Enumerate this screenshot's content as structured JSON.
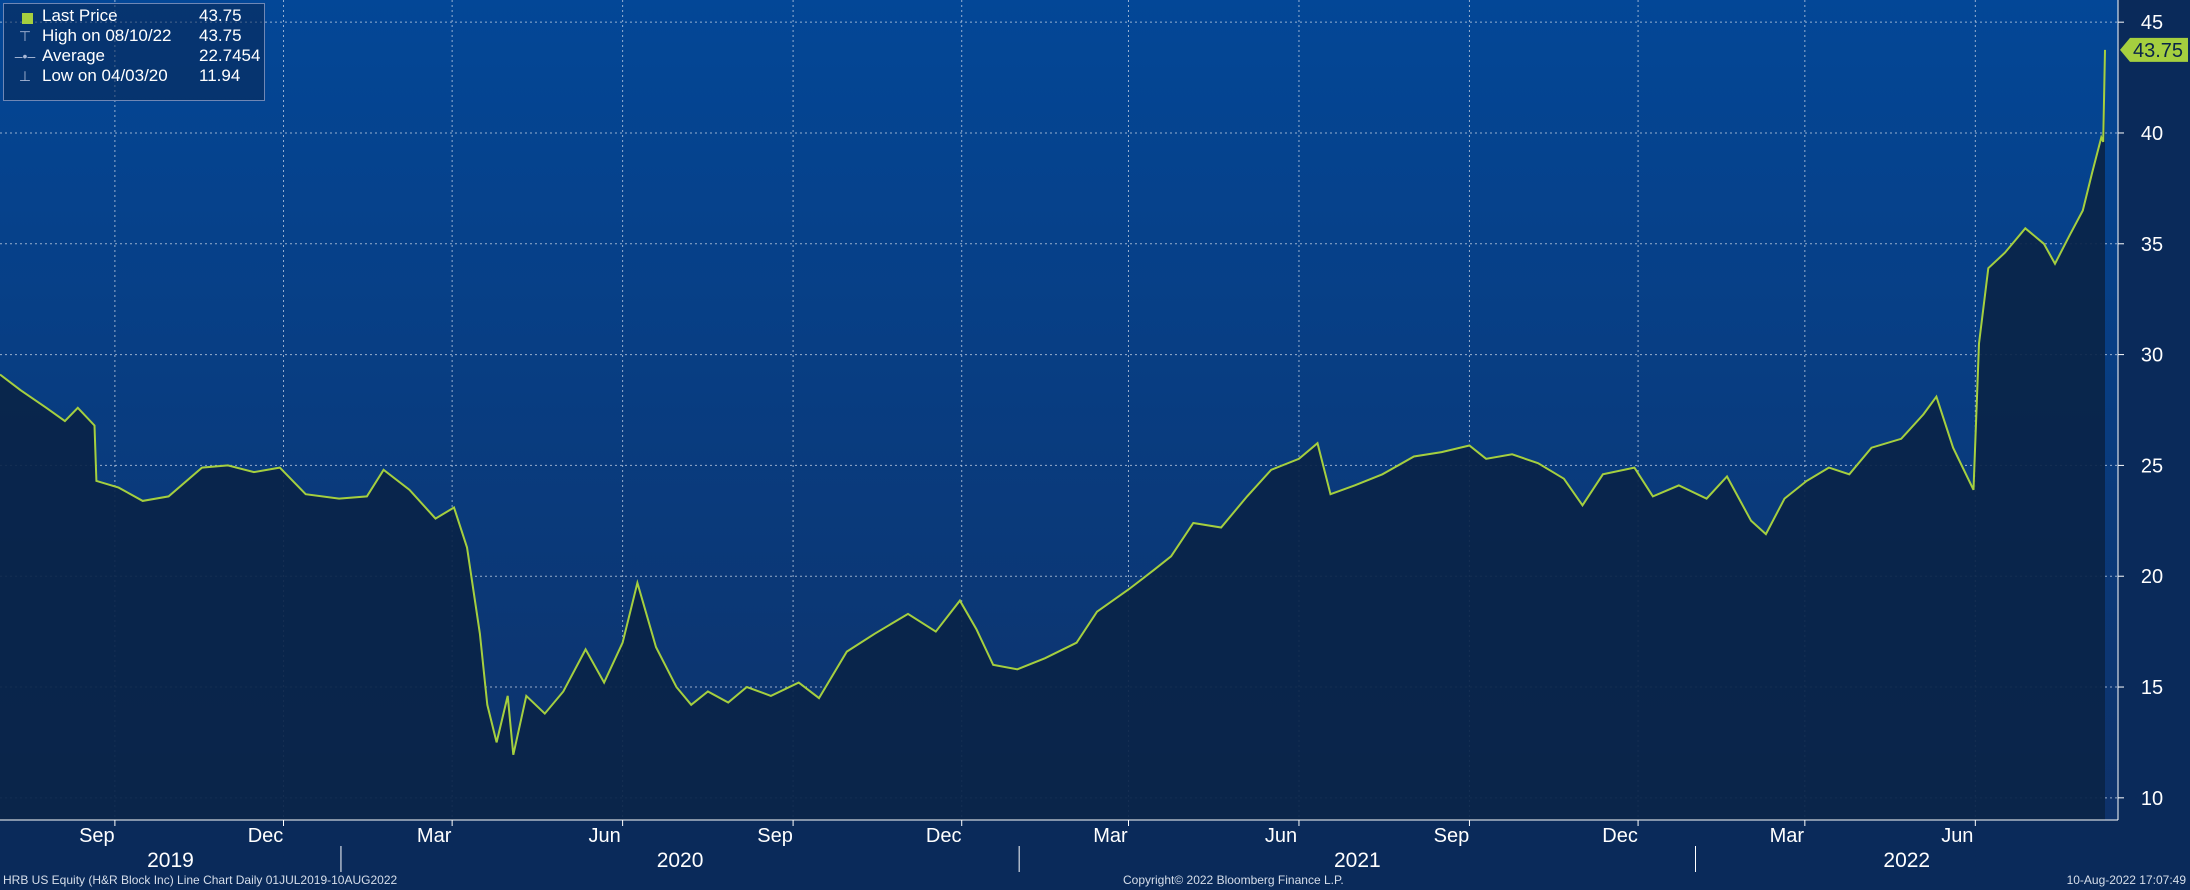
{
  "legend": {
    "items": [
      {
        "label": "Last Price",
        "value": "43.75",
        "icon": "square-swatch-icon"
      },
      {
        "label": "High on 08/10/22",
        "value": "43.75",
        "icon": "high-marker-icon"
      },
      {
        "label": "Average",
        "value": "22.7454",
        "icon": "average-marker-icon"
      },
      {
        "label": "Low on 04/03/20",
        "value": "11.94",
        "icon": "low-marker-icon"
      }
    ]
  },
  "footer": {
    "left": "HRB US Equity (H&R Block Inc) Line Chart  Daily 01JUL2019-10AUG2022",
    "center": "Copyright© 2022 Bloomberg Finance L.P.",
    "right": "10-Aug-2022 17:07:49"
  },
  "colors": {
    "line": "#a5cf3f",
    "area": "#0a2448",
    "background_top": "#034797",
    "background_bottom": "#0e326a",
    "grid": "#c8d4e6",
    "badge": "#a5cf3f"
  },
  "chart_data": {
    "type": "area",
    "series": [
      {
        "name": "Last Price",
        "points": [
          [
            "2019-07-01",
            29.1
          ],
          [
            "2019-07-12",
            28.4
          ],
          [
            "2019-07-26",
            27.6
          ],
          [
            "2019-08-05",
            27.0
          ],
          [
            "2019-08-12",
            27.6
          ],
          [
            "2019-08-21",
            26.8
          ],
          [
            "2019-08-22",
            24.3
          ],
          [
            "2019-09-03",
            24.0
          ],
          [
            "2019-09-16",
            23.4
          ],
          [
            "2019-09-30",
            23.6
          ],
          [
            "2019-10-18",
            24.9
          ],
          [
            "2019-11-01",
            25.0
          ],
          [
            "2019-11-15",
            24.7
          ],
          [
            "2019-11-29",
            24.9
          ],
          [
            "2019-12-13",
            23.7
          ],
          [
            "2019-12-31",
            23.5
          ],
          [
            "2020-01-15",
            23.6
          ],
          [
            "2020-01-24",
            24.8
          ],
          [
            "2020-02-07",
            23.9
          ],
          [
            "2020-02-21",
            22.6
          ],
          [
            "2020-03-02",
            23.1
          ],
          [
            "2020-03-09",
            21.3
          ],
          [
            "2020-03-16",
            17.4
          ],
          [
            "2020-03-20",
            14.2
          ],
          [
            "2020-03-25",
            12.5
          ],
          [
            "2020-03-31",
            14.6
          ],
          [
            "2020-04-03",
            11.94
          ],
          [
            "2020-04-10",
            14.6
          ],
          [
            "2020-04-20",
            13.8
          ],
          [
            "2020-04-30",
            14.8
          ],
          [
            "2020-05-12",
            16.7
          ],
          [
            "2020-05-22",
            15.2
          ],
          [
            "2020-06-01",
            17.0
          ],
          [
            "2020-06-09",
            19.7
          ],
          [
            "2020-06-19",
            16.8
          ],
          [
            "2020-06-30",
            15.0
          ],
          [
            "2020-07-08",
            14.2
          ],
          [
            "2020-07-17",
            14.8
          ],
          [
            "2020-07-28",
            14.3
          ],
          [
            "2020-08-07",
            15.0
          ],
          [
            "2020-08-20",
            14.6
          ],
          [
            "2020-09-04",
            15.2
          ],
          [
            "2020-09-15",
            14.5
          ],
          [
            "2020-09-30",
            16.6
          ],
          [
            "2020-10-15",
            17.4
          ],
          [
            "2020-11-02",
            18.3
          ],
          [
            "2020-11-17",
            17.5
          ],
          [
            "2020-11-30",
            18.9
          ],
          [
            "2020-12-09",
            17.6
          ],
          [
            "2020-12-18",
            16.0
          ],
          [
            "2020-12-31",
            15.8
          ],
          [
            "2021-01-15",
            16.3
          ],
          [
            "2021-02-01",
            17.0
          ],
          [
            "2021-02-12",
            18.4
          ],
          [
            "2021-03-01",
            19.4
          ],
          [
            "2021-03-15",
            20.3
          ],
          [
            "2021-03-24",
            20.9
          ],
          [
            "2021-04-05",
            22.4
          ],
          [
            "2021-04-20",
            22.2
          ],
          [
            "2021-05-04",
            23.6
          ],
          [
            "2021-05-17",
            24.8
          ],
          [
            "2021-06-01",
            25.3
          ],
          [
            "2021-06-11",
            26.0
          ],
          [
            "2021-06-18",
            23.7
          ],
          [
            "2021-07-01",
            24.1
          ],
          [
            "2021-07-16",
            24.6
          ],
          [
            "2021-08-02",
            25.4
          ],
          [
            "2021-08-17",
            25.6
          ],
          [
            "2021-09-01",
            25.9
          ],
          [
            "2021-09-10",
            25.3
          ],
          [
            "2021-09-24",
            25.5
          ],
          [
            "2021-10-08",
            25.1
          ],
          [
            "2021-10-22",
            24.4
          ],
          [
            "2021-11-01",
            23.2
          ],
          [
            "2021-11-12",
            24.6
          ],
          [
            "2021-11-29",
            24.9
          ],
          [
            "2021-12-09",
            23.6
          ],
          [
            "2021-12-23",
            24.1
          ],
          [
            "2022-01-07",
            23.5
          ],
          [
            "2022-01-18",
            24.5
          ],
          [
            "2022-01-31",
            22.5
          ],
          [
            "2022-02-08",
            21.9
          ],
          [
            "2022-02-18",
            23.5
          ],
          [
            "2022-03-02",
            24.3
          ],
          [
            "2022-03-14",
            24.9
          ],
          [
            "2022-03-25",
            24.6
          ],
          [
            "2022-04-06",
            25.8
          ],
          [
            "2022-04-22",
            26.2
          ],
          [
            "2022-05-04",
            27.3
          ],
          [
            "2022-05-11",
            28.1
          ],
          [
            "2022-05-20",
            25.8
          ],
          [
            "2022-05-31",
            23.9
          ],
          [
            "2022-06-03",
            30.5
          ],
          [
            "2022-06-08",
            33.9
          ],
          [
            "2022-06-17",
            34.6
          ],
          [
            "2022-06-28",
            35.7
          ],
          [
            "2022-07-08",
            35.0
          ],
          [
            "2022-07-14",
            34.1
          ],
          [
            "2022-07-22",
            35.4
          ],
          [
            "2022-07-29",
            36.5
          ],
          [
            "2022-08-03",
            38.2
          ],
          [
            "2022-08-08",
            39.8
          ],
          [
            "2022-08-09",
            39.6
          ],
          [
            "2022-08-10",
            43.75
          ]
        ]
      }
    ],
    "x_range": [
      "2019-07-01",
      "2022-08-17"
    ],
    "ylim": [
      9,
      46
    ],
    "y_ticks": [
      10,
      15,
      20,
      25,
      30,
      35,
      40,
      45
    ],
    "x_ticks": [
      {
        "date": "2019-09-01",
        "label": "Sep"
      },
      {
        "date": "2019-12-01",
        "label": "Dec"
      },
      {
        "date": "2020-03-01",
        "label": "Mar"
      },
      {
        "date": "2020-06-01",
        "label": "Jun"
      },
      {
        "date": "2020-09-01",
        "label": "Sep"
      },
      {
        "date": "2020-12-01",
        "label": "Dec"
      },
      {
        "date": "2021-03-01",
        "label": "Mar"
      },
      {
        "date": "2021-06-01",
        "label": "Jun"
      },
      {
        "date": "2021-09-01",
        "label": "Sep"
      },
      {
        "date": "2021-12-01",
        "label": "Dec"
      },
      {
        "date": "2022-03-01",
        "label": "Mar"
      },
      {
        "date": "2022-06-01",
        "label": "Jun"
      }
    ],
    "year_labels": [
      {
        "label": "2019",
        "from": "2019-07-01",
        "to": "2020-01-01"
      },
      {
        "label": "2020",
        "from": "2020-01-01",
        "to": "2021-01-01"
      },
      {
        "label": "2021",
        "from": "2021-01-01",
        "to": "2022-01-01"
      },
      {
        "label": "2022",
        "from": "2022-01-01",
        "to": "2022-08-17"
      }
    ],
    "last_value_label": "43.75",
    "grid": true,
    "legend_position": "top-left",
    "y_axis_position": "right"
  }
}
